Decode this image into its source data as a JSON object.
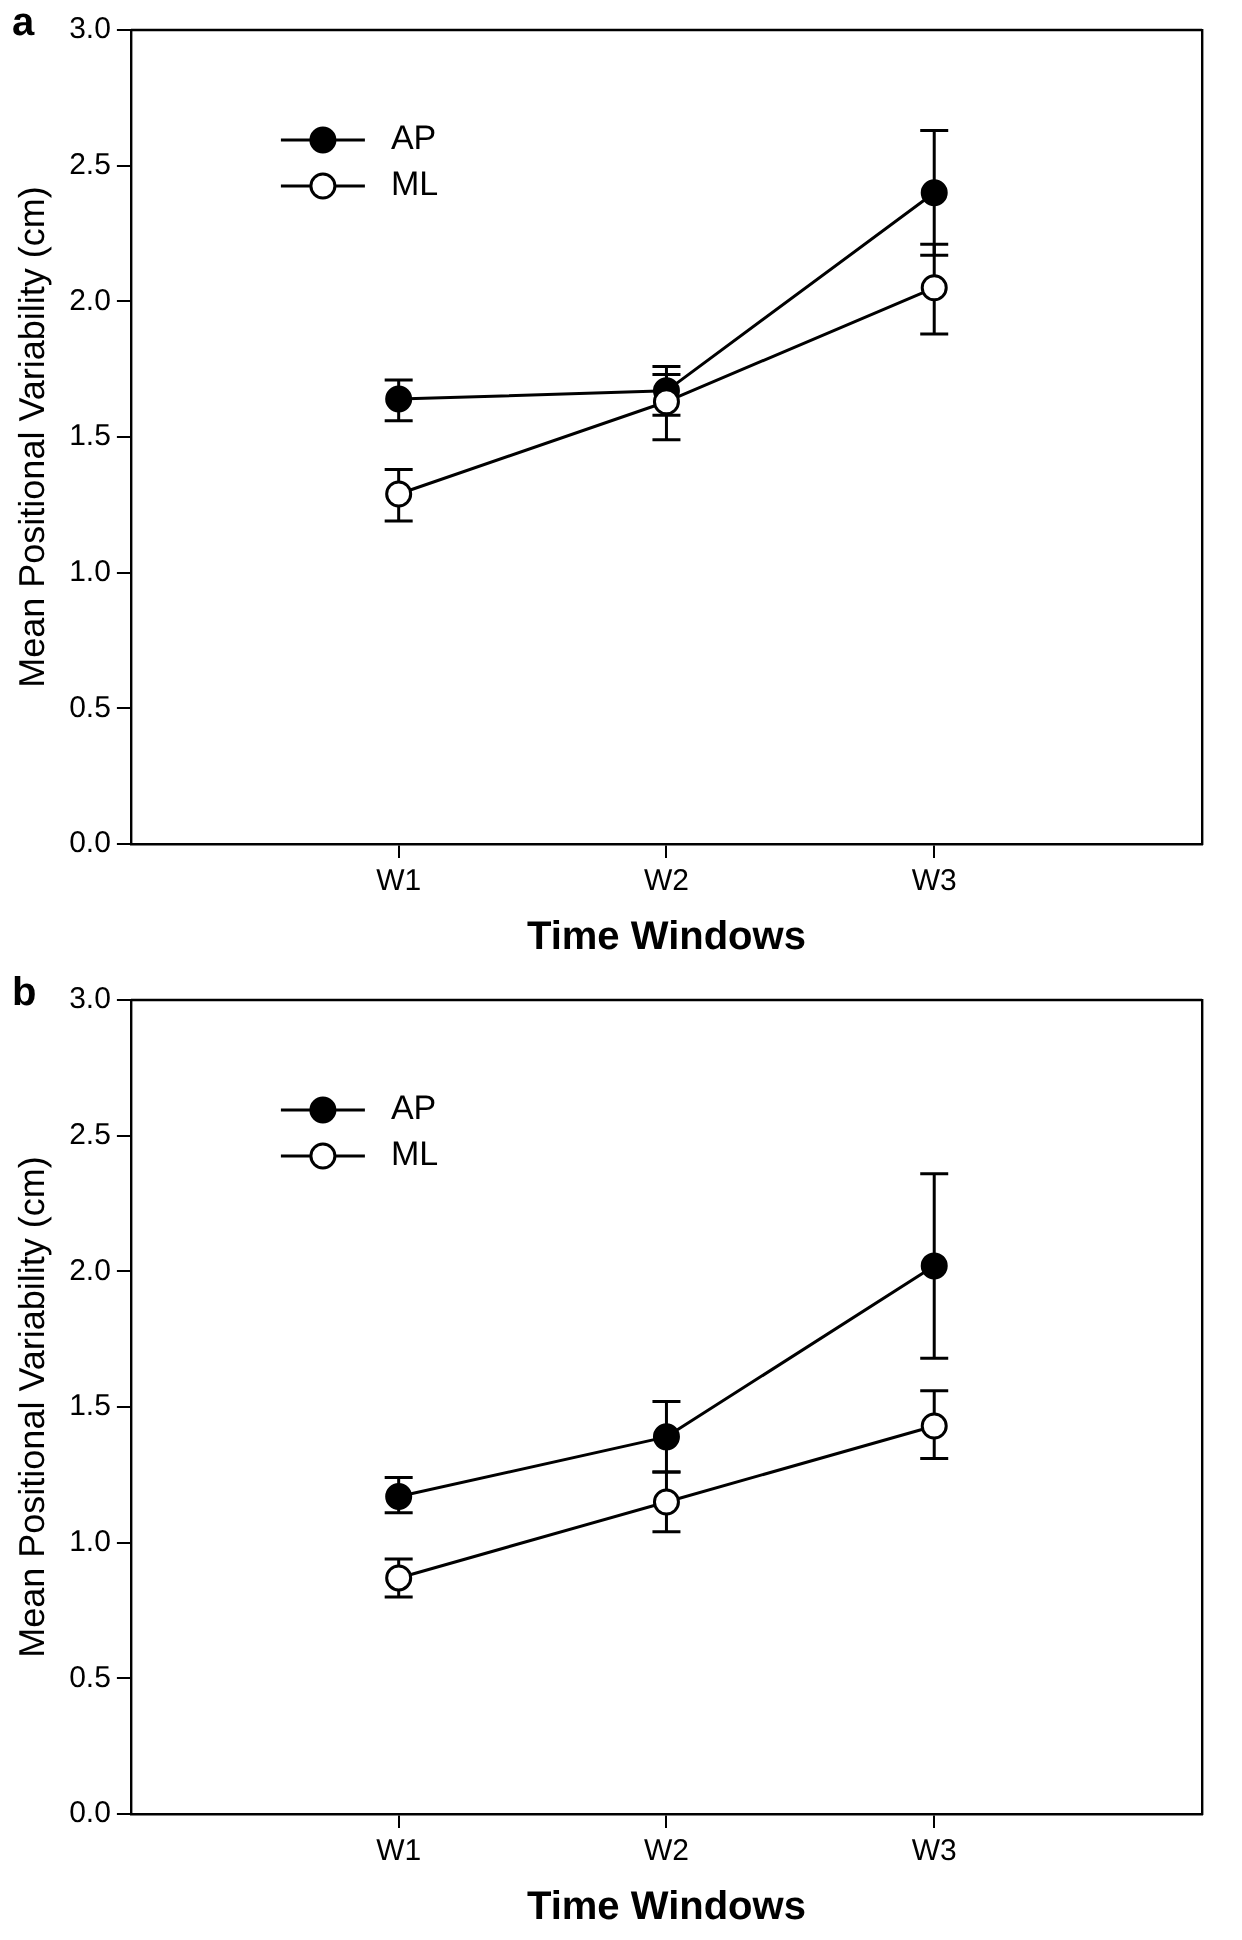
{
  "chart_data": [
    {
      "type": "line",
      "annotations": [
        "a"
      ],
      "xlabel": "Time Windows",
      "ylabel": "Mean Positional Variability (cm)",
      "categories": [
        "W1",
        "W2",
        "W3"
      ],
      "series": [
        {
          "name": "AP",
          "color": "#000000",
          "values": [
            1.64,
            1.67,
            2.4
          ],
          "errors": [
            [
              1.56,
              1.71
            ],
            [
              1.58,
              1.76
            ],
            [
              2.17,
              2.63
            ]
          ]
        },
        {
          "name": "ML",
          "color": "#ffffff",
          "values": [
            1.29,
            1.63,
            2.05
          ],
          "errors": [
            [
              1.19,
              1.38
            ],
            [
              1.49,
              1.73
            ],
            [
              1.88,
              2.21
            ]
          ]
        }
      ],
      "ylim": [
        0,
        3
      ],
      "yticks": [
        {
          "value": 0,
          "label": "0.0"
        },
        0.5,
        {
          "value": 1,
          "label": "1.0"
        },
        1.5,
        {
          "value": 2,
          "label": "2.0"
        },
        2.5,
        {
          "value": 3,
          "label": "3.0"
        }
      ],
      "grid": false,
      "legend": "top left",
      "marker": "circle",
      "line_style": "solid"
    },
    {
      "type": "line",
      "annotations": [
        "b"
      ],
      "xlabel": "Time Windows",
      "ylabel": "Mean Positional Variability (cm)",
      "categories": [
        "W1",
        "W2",
        "W3"
      ],
      "series": [
        {
          "name": "AP",
          "color": "#000000",
          "values": [
            1.17,
            1.39,
            2.02
          ],
          "errors": [
            [
              1.11,
              1.24
            ],
            [
              1.26,
              1.52
            ],
            [
              1.68,
              2.36
            ]
          ]
        },
        {
          "name": "ML",
          "color": "#ffffff",
          "values": [
            0.87,
            1.15,
            1.43
          ],
          "errors": [
            [
              0.8,
              0.94
            ],
            [
              1.04,
              1.26
            ],
            [
              1.31,
              1.56
            ]
          ]
        }
      ],
      "ylim": [
        0,
        3
      ],
      "yticks": [
        {
          "value": 0,
          "label": "0.0"
        },
        0.5,
        {
          "value": 1,
          "label": "1.0"
        },
        1.5,
        {
          "value": 2,
          "label": "2.0"
        },
        2.5,
        {
          "value": 3,
          "label": "3.0"
        }
      ],
      "grid": false,
      "legend": "top left",
      "marker": "circle",
      "line_style": "solid"
    }
  ]
}
